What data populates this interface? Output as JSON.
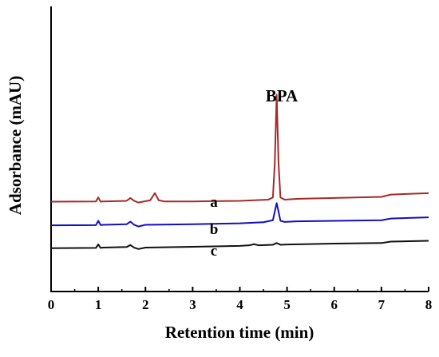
{
  "chart_data": {
    "type": "line",
    "title": "",
    "xlabel": "Retention time (min)",
    "ylabel": "Adsorbance (mAU)",
    "xlim": [
      0,
      8
    ],
    "ylim": [
      0,
      100
    ],
    "x_ticks": [
      "0",
      "1",
      "2",
      "3",
      "4",
      "5",
      "6",
      "7",
      "8"
    ],
    "grid": false,
    "annotation": "BPA",
    "annotation_x": 4.78,
    "series": [
      {
        "name": "a",
        "color": "#a52a2a",
        "x": [
          0,
          0.95,
          1.0,
          1.05,
          1.1,
          1.6,
          1.68,
          1.76,
          1.85,
          2.1,
          2.2,
          2.28,
          2.4,
          3.0,
          4.0,
          4.6,
          4.7,
          4.74,
          4.78,
          4.82,
          4.86,
          4.95,
          5.2,
          6.0,
          7.0,
          7.2,
          8.0
        ],
        "y": [
          31.5,
          31.6,
          33.0,
          31.5,
          31.6,
          31.8,
          32.8,
          31.8,
          31.2,
          32.0,
          34.5,
          32.0,
          31.6,
          31.6,
          31.8,
          32.2,
          33.0,
          45.0,
          69.0,
          45.0,
          33.0,
          32.2,
          32.5,
          32.8,
          33.2,
          34.0,
          34.5
        ]
      },
      {
        "name": "b",
        "color": "#1010c0",
        "x": [
          0,
          0.95,
          1.0,
          1.05,
          1.1,
          1.6,
          1.68,
          1.76,
          1.85,
          2.0,
          3.0,
          4.0,
          4.5,
          4.7,
          4.74,
          4.78,
          4.82,
          4.86,
          4.95,
          5.2,
          6.0,
          7.0,
          7.2,
          8.0
        ],
        "y": [
          23.2,
          23.3,
          24.8,
          23.3,
          23.4,
          23.6,
          24.5,
          23.4,
          22.8,
          23.4,
          23.6,
          23.9,
          24.3,
          25.0,
          28.0,
          31.0,
          28.0,
          24.8,
          24.4,
          24.6,
          24.8,
          25.0,
          25.6,
          26.0
        ]
      },
      {
        "name": "c",
        "color": "#111111",
        "x": [
          0,
          0.95,
          1.0,
          1.05,
          1.1,
          1.6,
          1.68,
          1.76,
          1.85,
          2.0,
          3.0,
          4.0,
          4.2,
          4.3,
          4.4,
          4.7,
          4.78,
          4.86,
          5.0,
          6.0,
          7.0,
          7.2,
          8.0
        ],
        "y": [
          15.2,
          15.3,
          16.5,
          15.3,
          15.4,
          15.6,
          16.3,
          15.4,
          14.9,
          15.4,
          15.7,
          16.0,
          16.2,
          16.6,
          16.2,
          16.4,
          17.0,
          16.4,
          16.5,
          16.8,
          17.0,
          17.5,
          17.8
        ]
      }
    ]
  }
}
